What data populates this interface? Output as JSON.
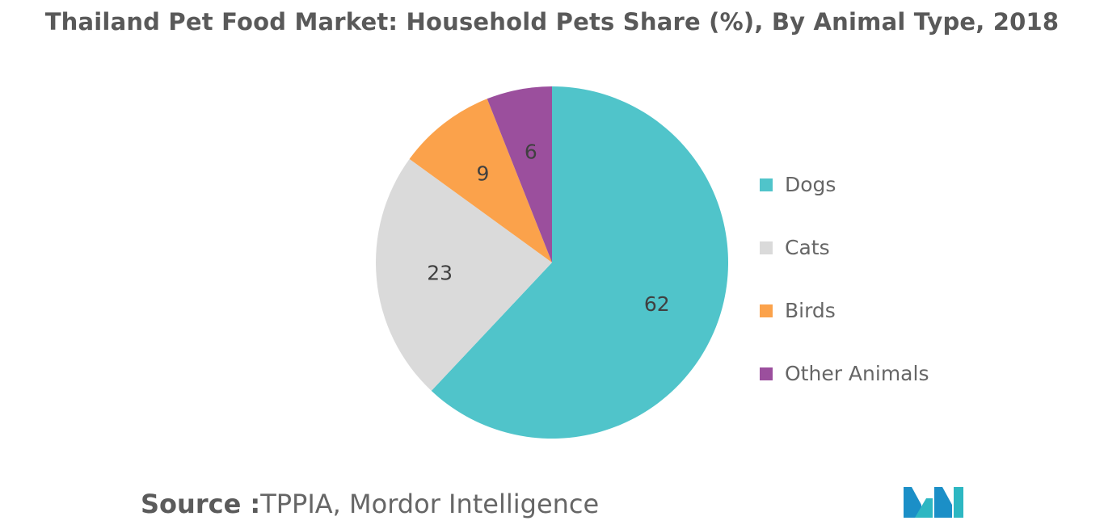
{
  "chart_data": {
    "type": "pie",
    "title": "Thailand Pet Food Market: Household Pets Share (%), By Animal Type, 2018",
    "categories": [
      "Dogs",
      "Cats",
      "Birds",
      "Other Animals"
    ],
    "values": [
      62,
      23,
      9,
      6
    ],
    "data_labels": [
      "62",
      "23",
      "9",
      "6"
    ],
    "colors": [
      "#50C4CA",
      "#DADADA",
      "#FBA24B",
      "#9B4F9D"
    ],
    "legend_position": "right",
    "start": "12 o'clock",
    "direction": "clockwise"
  },
  "source": {
    "label": "Source :",
    "text": "TPPIA, Mordor Intelligence"
  },
  "logo": {
    "icon": "mordor-intelligence-logo-icon",
    "colors": [
      "#1B8FC7",
      "#2DB7C2"
    ]
  }
}
